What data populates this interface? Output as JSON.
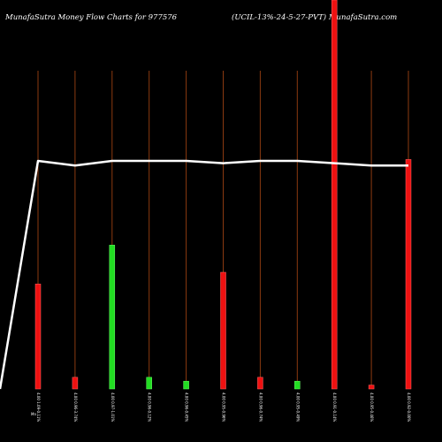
{
  "chart_data": {
    "type": "bar",
    "title_left": "MunafaSutra  Money Flow  Charts for 977576",
    "title_right": "(UCIL-13%-24-5-27-PVT) MunafaSutra.com",
    "categories": [
      "4.00 1.09-0.11%",
      "4.00 0.96-3.74%",
      "4.00 0.97-1.01%",
      "4.00 0.96-0.12%",
      "4.00 0.96-0.45%",
      "4.00 0.95-0.96%",
      "4.00 0.96-0.74%",
      "4.00 0.95-0.49%",
      "4.00 0.91-0.14%",
      "4.00 0.95-0.46%",
      "4.00 0.92-0.00%"
    ],
    "first_category_prefix": "Mn",
    "flow_direction": [
      "out",
      "out",
      "in",
      "in",
      "in",
      "out",
      "out",
      "in",
      "out",
      "out",
      "out"
    ],
    "bar_values": [
      0.27,
      0.03,
      0.37,
      0.03,
      0.02,
      0.3,
      0.03,
      0.02,
      1.0,
      0.01,
      0.59
    ],
    "price_line": [
      0,
      1.0,
      0.98,
      1.0,
      1.0,
      1.0,
      0.99,
      1.0,
      1.0,
      0.99,
      0.98,
      0.98
    ],
    "colors": {
      "background": "#000000",
      "inflow": "#22dd22",
      "outflow": "#ee1111",
      "price_line": "#ffffff",
      "guide_line": "#8b3a10"
    },
    "grid": false,
    "legend": "none"
  }
}
